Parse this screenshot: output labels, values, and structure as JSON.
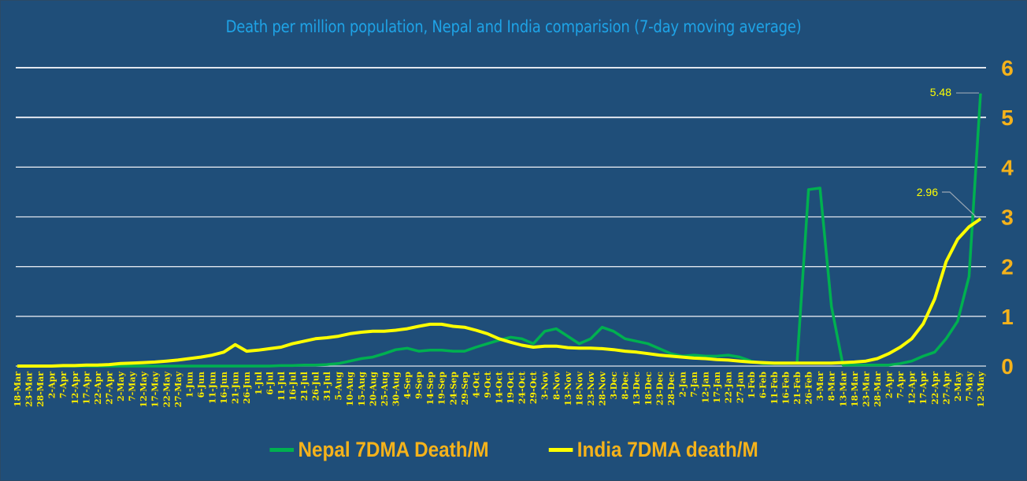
{
  "chart_data": {
    "type": "line",
    "title": "Death per million population,  Nepal and India comparision  (7-day moving average)",
    "xlabel": "",
    "ylabel": "",
    "ylim": [
      0,
      6
    ],
    "yticks": [
      "0",
      "1",
      "2",
      "3",
      "4",
      "5",
      "6"
    ],
    "grid": true,
    "legend_position": "bottom",
    "x": [
      "18-Mar",
      "23-Mar",
      "28-Mar",
      "2-Apr",
      "7-Apr",
      "12-Apr",
      "17-Apr",
      "22-Apr",
      "27-Apr",
      "2-May",
      "7-May",
      "12-May",
      "17-May",
      "22-May",
      "27-May",
      "1-Jun",
      "6-Jun",
      "11-Jun",
      "16-Jun",
      "21-Jun",
      "26-Jun",
      "1-Jul",
      "6-Jul",
      "11-Jul",
      "16-Jul",
      "21-Jul",
      "26-Jul",
      "31-Jul",
      "5-Aug",
      "10-Aug",
      "15-Aug",
      "20-Aug",
      "25-Aug",
      "30-Aug",
      "4-Sep",
      "9-Sep",
      "14-Sep",
      "19-Sep",
      "24-Sep",
      "29-Sep",
      "4-Oct",
      "9-Oct",
      "14-Oct",
      "19-Oct",
      "24-Oct",
      "29-Oct",
      "3-Nov",
      "8-Nov",
      "13-Nov",
      "18-Nov",
      "23-Nov",
      "28-Nov",
      "3-Dec",
      "8-Dec",
      "13-Dec",
      "18-Dec",
      "23-Dec",
      "28-Dec",
      "2-Jan",
      "7-Jan",
      "12-Jan",
      "17-Jan",
      "22-Jan",
      "27-Jan",
      "1-Feb",
      "6-Feb",
      "11-Feb",
      "16-Feb",
      "21-Feb",
      "26-Feb",
      "3-Mar",
      "8-Mar",
      "13-Mar",
      "18-Mar",
      "23-Mar",
      "28-Mar",
      "2-Apr",
      "7-Apr",
      "12-Apr",
      "17-Apr",
      "22-Apr",
      "27-Apr",
      "2-May",
      "7-May",
      "12-May"
    ],
    "series": [
      {
        "name": "Nepal 7DMA Death/M",
        "color": "#00b050",
        "values": [
          0,
          0,
          0,
          0,
          0,
          0,
          0,
          0,
          0,
          0,
          0,
          0,
          0,
          0,
          0,
          0,
          0,
          0,
          0,
          0,
          0,
          0,
          0,
          0.01,
          0.01,
          0.02,
          0.02,
          0.03,
          0.05,
          0.1,
          0.15,
          0.18,
          0.25,
          0.33,
          0.36,
          0.3,
          0.32,
          0.32,
          0.3,
          0.3,
          0.38,
          0.45,
          0.52,
          0.58,
          0.55,
          0.45,
          0.7,
          0.75,
          0.6,
          0.45,
          0.55,
          0.78,
          0.7,
          0.55,
          0.5,
          0.45,
          0.35,
          0.25,
          0.2,
          0.22,
          0.2,
          0.2,
          0.22,
          0.18,
          0.1,
          0.05,
          0.05,
          0.05,
          0.06,
          3.55,
          3.58,
          1.2,
          0.02,
          0.02,
          0.02,
          0.02,
          0.02,
          0.05,
          0.1,
          0.2,
          0.28,
          0.55,
          0.9,
          1.8,
          5.48
        ]
      },
      {
        "name": "India 7DMA death/M",
        "color": "#ffff00",
        "values": [
          0,
          0,
          0,
          0,
          0.01,
          0.01,
          0.02,
          0.02,
          0.03,
          0.05,
          0.06,
          0.07,
          0.08,
          0.1,
          0.12,
          0.15,
          0.18,
          0.22,
          0.28,
          0.43,
          0.3,
          0.32,
          0.35,
          0.38,
          0.45,
          0.5,
          0.55,
          0.57,
          0.6,
          0.65,
          0.68,
          0.7,
          0.7,
          0.72,
          0.75,
          0.8,
          0.84,
          0.84,
          0.8,
          0.78,
          0.72,
          0.65,
          0.55,
          0.48,
          0.42,
          0.38,
          0.4,
          0.4,
          0.37,
          0.36,
          0.36,
          0.35,
          0.33,
          0.3,
          0.28,
          0.25,
          0.22,
          0.2,
          0.18,
          0.16,
          0.15,
          0.13,
          0.12,
          0.1,
          0.08,
          0.07,
          0.06,
          0.06,
          0.06,
          0.06,
          0.06,
          0.06,
          0.07,
          0.08,
          0.1,
          0.15,
          0.25,
          0.38,
          0.55,
          0.85,
          1.35,
          2.1,
          2.55,
          2.8,
          2.96
        ]
      }
    ],
    "annotations": [
      {
        "label": "5.48",
        "series": "Nepal 7DMA Death/M",
        "x": "12-May",
        "y": 5.48
      },
      {
        "label": "2.96",
        "series": "India 7DMA death/M",
        "x": "12-May",
        "y": 2.96
      }
    ]
  }
}
